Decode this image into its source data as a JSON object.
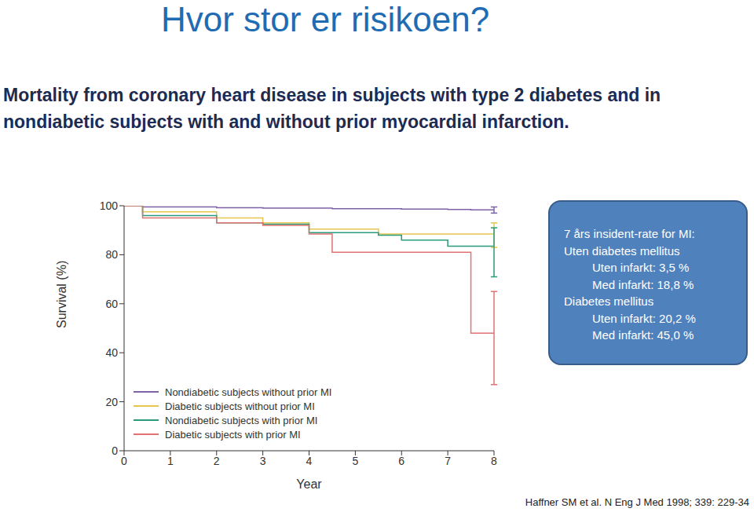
{
  "title": "Hvor stor er risikoen?",
  "subtitle": "Mortality from coronary heart disease in subjects with type 2 diabetes and in nondiabetic subjects with and without prior myocardial infarction.",
  "annotation_box": {
    "title": "7 års insident-rate for MI:",
    "groups": [
      {
        "label": "Uten diabetes mellitus",
        "items": [
          "Uten infarkt: 3,5 %",
          "Med infarkt: 18,8 %"
        ]
      },
      {
        "label": "Diabetes mellitus",
        "items": [
          "Uten infarkt: 20,2 %",
          "Med infarkt: 45,0 %"
        ]
      }
    ]
  },
  "source": "Haffner SM et al. N Eng J Med 1998; 339: 229-34",
  "chart_data": {
    "type": "line",
    "x_label": "Year",
    "y_label": "Survival (%)",
    "x": [
      0,
      0.4,
      1,
      2,
      3,
      4,
      4.5,
      5.5,
      6,
      7,
      7.5,
      8
    ],
    "xlim": [
      0,
      8
    ],
    "xticks": [
      0,
      1,
      2,
      3,
      4,
      5,
      6,
      7,
      8
    ],
    "ylim": [
      0,
      100
    ],
    "yticks": [
      0,
      20,
      40,
      60,
      80,
      100
    ],
    "grid": false,
    "legend": "lower left",
    "line_style": "step",
    "series": [
      {
        "name": "Nondiabetic subjects without prior MI",
        "color": "#7d62a8",
        "values": [
          100,
          99.5,
          99.5,
          99.2,
          99,
          99,
          98.8,
          98.8,
          98.6,
          98.5,
          98.3,
          98.3
        ],
        "error_range": [
          97,
          99.5
        ]
      },
      {
        "name": "Diabetic subjects without prior MI",
        "color": "#e6c64c",
        "values": [
          100,
          97.5,
          97.5,
          95,
          93,
          90.5,
          90.5,
          88.5,
          88.5,
          88.5,
          88.5,
          88.5
        ],
        "error_range": [
          83,
          93
        ]
      },
      {
        "name": "Nondiabetic subjects with prior MI",
        "color": "#2a9a7c",
        "values": [
          100,
          96,
          96,
          93,
          92.5,
          89,
          89,
          88,
          86,
          83.5,
          83.5,
          83.5
        ],
        "error_range": [
          71,
          91
        ]
      },
      {
        "name": "Diabetic subjects with prior MI",
        "color": "#e07272",
        "values": [
          100,
          95,
          95,
          93,
          92,
          88.5,
          81,
          81,
          81,
          81,
          48,
          48
        ],
        "error_range": [
          27,
          65
        ]
      }
    ]
  }
}
